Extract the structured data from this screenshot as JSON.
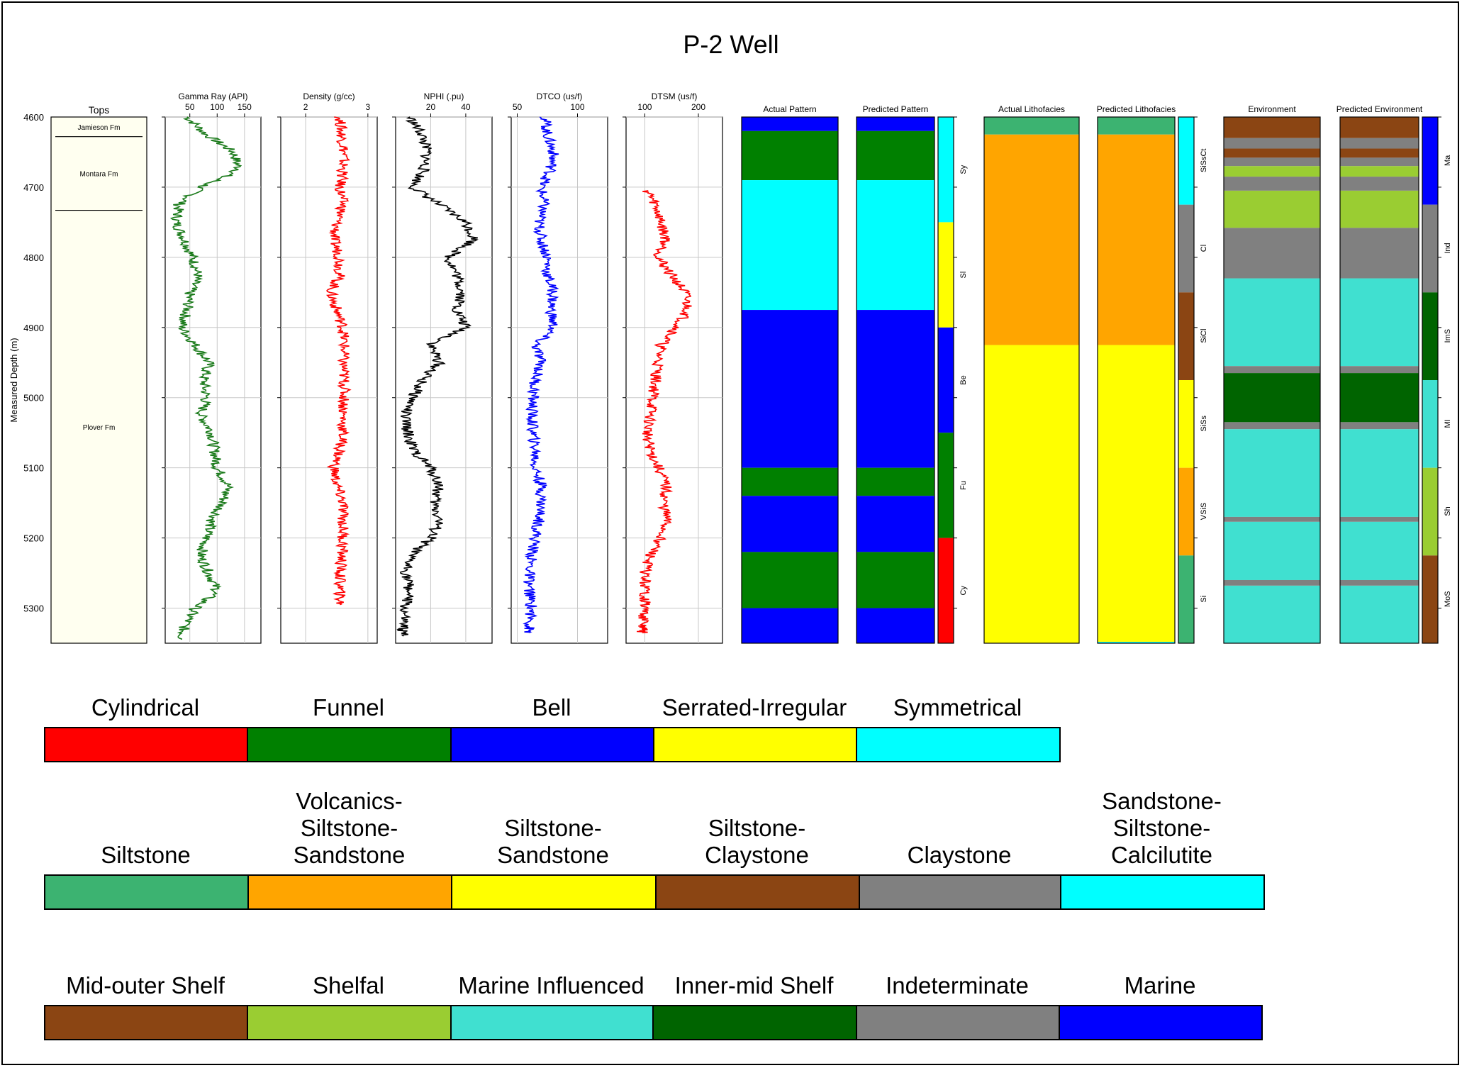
{
  "chart_data": {
    "type": "well-log",
    "title": "P-2 Well",
    "ylabel": "Measured Depth (m)",
    "depth_range": [
      4600,
      5350
    ],
    "depth_ticks": [
      4600,
      4700,
      4800,
      4900,
      5000,
      5100,
      5200,
      5300
    ],
    "tops": {
      "title": "Tops",
      "formations": [
        {
          "name": "Jamieson Fm",
          "top": 4600,
          "base": 4628
        },
        {
          "name": "Montara Fm",
          "top": 4628,
          "base": 4733
        },
        {
          "name": "Plover Fm",
          "top": 4733,
          "base": 5350
        }
      ]
    },
    "curves": [
      {
        "name": "Gamma Ray (API)",
        "color": "#1a7a1a",
        "xlim": [
          5,
          180
        ],
        "ticks": [
          50,
          100,
          150
        ],
        "depths": [
          4600,
          4625,
          4650,
          4675,
          4700,
          4725,
          4750,
          4775,
          4800,
          4825,
          4850,
          4875,
          4900,
          4925,
          4950,
          4975,
          5000,
          5025,
          5050,
          5075,
          5100,
          5125,
          5150,
          5175,
          5200,
          5225,
          5250,
          5275,
          5300,
          5325,
          5345
        ],
        "values": [
          45,
          80,
          130,
          140,
          70,
          30,
          25,
          40,
          55,
          65,
          50,
          45,
          35,
          60,
          85,
          75,
          80,
          70,
          90,
          95,
          100,
          120,
          110,
          90,
          80,
          70,
          85,
          100,
          60,
          40,
          35
        ]
      },
      {
        "name": "Density (g/cc)",
        "color": "#ff0000",
        "xlim": [
          1.6,
          3.15
        ],
        "ticks": [
          2,
          3
        ],
        "depths": [
          4600,
          4625,
          4650,
          4675,
          4700,
          4725,
          4750,
          4775,
          4800,
          4825,
          4850,
          4875,
          4900,
          4925,
          4950,
          4975,
          5000,
          5025,
          5050,
          5075,
          5100,
          5125,
          5150,
          5175,
          5200,
          5225,
          5250,
          5275,
          5295
        ],
        "values": [
          2.55,
          2.58,
          2.62,
          2.6,
          2.55,
          2.6,
          2.5,
          2.45,
          2.55,
          2.55,
          2.4,
          2.5,
          2.6,
          2.62,
          2.6,
          2.62,
          2.62,
          2.6,
          2.6,
          2.55,
          2.45,
          2.5,
          2.6,
          2.6,
          2.6,
          2.58,
          2.55,
          2.55,
          2.55
        ]
      },
      {
        "name": "NPHI (.pu)",
        "color": "#000000",
        "xlim": [
          0,
          55
        ],
        "ticks": [
          20,
          40
        ],
        "depths": [
          4600,
          4625,
          4650,
          4675,
          4700,
          4725,
          4750,
          4775,
          4800,
          4825,
          4850,
          4875,
          4900,
          4925,
          4950,
          4975,
          5000,
          5025,
          5050,
          5075,
          5100,
          5125,
          5150,
          5175,
          5200,
          5225,
          5250,
          5275,
          5300,
          5325,
          5340
        ],
        "values": [
          8,
          15,
          18,
          16,
          10,
          25,
          40,
          45,
          30,
          35,
          38,
          35,
          40,
          20,
          25,
          15,
          10,
          5,
          7,
          10,
          20,
          25,
          22,
          25,
          20,
          8,
          6,
          8,
          5,
          4,
          4
        ]
      },
      {
        "name": "DTCO (us/f)",
        "color": "#0000ff",
        "xlim": [
          45,
          125
        ],
        "ticks": [
          50,
          100
        ],
        "depths": [
          4600,
          4625,
          4650,
          4675,
          4700,
          4725,
          4750,
          4775,
          4800,
          4825,
          4850,
          4875,
          4900,
          4925,
          4950,
          4975,
          5000,
          5025,
          5050,
          5075,
          5100,
          5125,
          5150,
          5175,
          5200,
          5225,
          5250,
          5275,
          5300,
          5325,
          5335
        ],
        "values": [
          73,
          75,
          80,
          78,
          70,
          72,
          68,
          70,
          75,
          75,
          80,
          78,
          80,
          65,
          70,
          65,
          63,
          62,
          63,
          65,
          65,
          70,
          70,
          68,
          65,
          62,
          60,
          60,
          62,
          60,
          60
        ]
      },
      {
        "name": "DTSM (us/f)",
        "color": "#ff0000",
        "xlim": [
          65,
          245
        ],
        "ticks": [
          100,
          200
        ],
        "depths": [
          4705,
          4725,
          4750,
          4775,
          4800,
          4825,
          4850,
          4875,
          4900,
          4925,
          4950,
          4975,
          5000,
          5025,
          5050,
          5075,
          5100,
          5125,
          5150,
          5175,
          5200,
          5225,
          5250,
          5275,
          5300,
          5325,
          5335
        ],
        "values": [
          105,
          120,
          130,
          140,
          125,
          150,
          175,
          180,
          160,
          130,
          125,
          120,
          115,
          110,
          105,
          110,
          125,
          140,
          135,
          140,
          130,
          110,
          100,
          100,
          100,
          95,
          95
        ]
      }
    ],
    "tracks": [
      {
        "name": "Actual Pattern",
        "intervals": [
          [
            4600,
            4620,
            "Bell"
          ],
          [
            4620,
            4690,
            "Funnel"
          ],
          [
            4690,
            4875,
            "Symmetrical"
          ],
          [
            4875,
            5100,
            "Bell"
          ],
          [
            5100,
            5140,
            "Funnel"
          ],
          [
            5140,
            5220,
            "Bell"
          ],
          [
            5220,
            5300,
            "Funnel"
          ],
          [
            5300,
            5350,
            "Bell"
          ]
        ]
      },
      {
        "name": "Predicted Pattern",
        "intervals": [
          [
            4600,
            4620,
            "Bell"
          ],
          [
            4620,
            4690,
            "Funnel"
          ],
          [
            4690,
            4875,
            "Symmetrical"
          ],
          [
            4875,
            5100,
            "Bell"
          ],
          [
            5100,
            5140,
            "Funnel"
          ],
          [
            5140,
            5220,
            "Bell"
          ],
          [
            5220,
            5300,
            "Funnel"
          ],
          [
            5300,
            5350,
            "Bell"
          ]
        ]
      },
      {
        "name": "",
        "intervals": [
          [
            4600,
            4750,
            "Symmetrical"
          ],
          [
            4750,
            4900,
            "Serrated-Irregular"
          ],
          [
            4900,
            5050,
            "Bell"
          ],
          [
            5050,
            5200,
            "Funnel"
          ],
          [
            5200,
            5350,
            "Cylindrical"
          ]
        ],
        "labels": [
          [
            4675,
            "Sy"
          ],
          [
            4825,
            "Sl"
          ],
          [
            4975,
            "Be"
          ],
          [
            5125,
            "Fu"
          ],
          [
            5275,
            "Cy"
          ]
        ]
      },
      {
        "name": "Actual Lithofacies",
        "intervals": [
          [
            4600,
            4625,
            "Siltstone"
          ],
          [
            4625,
            4925,
            "Volcanics-Siltstone-Sandstone"
          ],
          [
            4925,
            5350,
            "Siltstone-Sandstone"
          ]
        ]
      },
      {
        "name": "Predicted Lithofacies",
        "intervals": [
          [
            4600,
            4625,
            "Siltstone"
          ],
          [
            4625,
            4925,
            "Volcanics-Siltstone-Sandstone"
          ],
          [
            4925,
            5348,
            "Siltstone-Sandstone"
          ],
          [
            5348,
            5350,
            "Sandstone-Siltstone-Calcilutite"
          ]
        ]
      },
      {
        "name": "",
        "intervals": [
          [
            4600,
            4725,
            "Sandstone-Siltstone-Calcilutite"
          ],
          [
            4725,
            4850,
            "Claystone"
          ],
          [
            4850,
            4975,
            "Siltstone-Claystone"
          ],
          [
            4975,
            5100,
            "Siltstone-Sandstone"
          ],
          [
            5100,
            5225,
            "Volcanics-Siltstone-Sandstone"
          ],
          [
            5225,
            5350,
            "Siltstone"
          ]
        ],
        "labels": [
          [
            4662,
            "SiSsCt"
          ],
          [
            4787,
            "Cl"
          ],
          [
            4912,
            "SiCl"
          ],
          [
            5037,
            "SiSs"
          ],
          [
            5162,
            "VSiS"
          ],
          [
            5287,
            "Si"
          ]
        ]
      },
      {
        "name": "Environment",
        "intervals": [
          [
            4600,
            4630,
            "Mid-outer Shelf"
          ],
          [
            4630,
            4645,
            "Indeterminate"
          ],
          [
            4645,
            4658,
            "Mid-outer Shelf"
          ],
          [
            4658,
            4670,
            "Indeterminate"
          ],
          [
            4670,
            4685,
            "Shelfal"
          ],
          [
            4685,
            4705,
            "Indeterminate"
          ],
          [
            4705,
            4758,
            "Shelfal"
          ],
          [
            4758,
            4830,
            "Indeterminate"
          ],
          [
            4830,
            4955,
            "Marine Influenced"
          ],
          [
            4955,
            4965,
            "Indeterminate"
          ],
          [
            4965,
            5035,
            "Inner-mid Shelf"
          ],
          [
            5035,
            5045,
            "Indeterminate"
          ],
          [
            5045,
            5170,
            "Marine Influenced"
          ],
          [
            5170,
            5177,
            "Indeterminate"
          ],
          [
            5177,
            5260,
            "Marine Influenced"
          ],
          [
            5260,
            5268,
            "Indeterminate"
          ],
          [
            5268,
            5350,
            "Marine Influenced"
          ]
        ]
      },
      {
        "name": "Predicted Environment",
        "intervals": [
          [
            4600,
            4630,
            "Mid-outer Shelf"
          ],
          [
            4630,
            4645,
            "Indeterminate"
          ],
          [
            4645,
            4658,
            "Mid-outer Shelf"
          ],
          [
            4658,
            4670,
            "Indeterminate"
          ],
          [
            4670,
            4685,
            "Shelfal"
          ],
          [
            4685,
            4705,
            "Indeterminate"
          ],
          [
            4705,
            4758,
            "Shelfal"
          ],
          [
            4758,
            4830,
            "Indeterminate"
          ],
          [
            4830,
            4955,
            "Marine Influenced"
          ],
          [
            4955,
            4965,
            "Indeterminate"
          ],
          [
            4965,
            5035,
            "Inner-mid Shelf"
          ],
          [
            5035,
            5045,
            "Indeterminate"
          ],
          [
            5045,
            5170,
            "Marine Influenced"
          ],
          [
            5170,
            5177,
            "Indeterminate"
          ],
          [
            5177,
            5260,
            "Marine Influenced"
          ],
          [
            5260,
            5268,
            "Indeterminate"
          ],
          [
            5268,
            5350,
            "Marine Influenced"
          ]
        ]
      },
      {
        "name": "",
        "intervals": [
          [
            4600,
            4725,
            "Marine"
          ],
          [
            4725,
            4850,
            "Indeterminate"
          ],
          [
            4850,
            4975,
            "Inner-mid Shelf"
          ],
          [
            4975,
            5100,
            "Marine Influenced"
          ],
          [
            5100,
            5225,
            "Shelfal"
          ],
          [
            5225,
            5350,
            "Mid-outer Shelf"
          ]
        ],
        "labels": [
          [
            4662,
            "Ma"
          ],
          [
            4787,
            "Ind"
          ],
          [
            4912,
            "ImS"
          ],
          [
            5037,
            "MI"
          ],
          [
            5162,
            "Sh"
          ],
          [
            5287,
            "MoS"
          ]
        ]
      }
    ],
    "legend_groups": [
      [
        {
          "label": "Cylindrical",
          "color": "#ff0000"
        },
        {
          "label": "Funnel",
          "color": "#008000"
        },
        {
          "label": "Bell",
          "color": "#0000ff"
        },
        {
          "label": "Serrated-Irregular",
          "color": "#ffff00"
        },
        {
          "label": "Symmetrical",
          "color": "#00ffff"
        }
      ],
      [
        {
          "label": "Siltstone",
          "color": "#3cb371"
        },
        {
          "label": "Volcanics-\nSiltstone-\nSandstone",
          "color": "#ffa500"
        },
        {
          "label": "Siltstone-\nSandstone",
          "color": "#ffff00"
        },
        {
          "label": "Siltstone-\nClaystone",
          "color": "#8b4513"
        },
        {
          "label": "Claystone",
          "color": "#808080"
        },
        {
          "label": "Sandstone-\nSiltstone-\nCalcilutite",
          "color": "#00ffff"
        }
      ],
      [
        {
          "label": "Mid-outer Shelf",
          "color": "#8b4513"
        },
        {
          "label": "Shelfal",
          "color": "#9acd32"
        },
        {
          "label": "Marine Influenced",
          "color": "#40e0d0"
        },
        {
          "label": "Inner-mid Shelf",
          "color": "#006400"
        },
        {
          "label": "Indeterminate",
          "color": "#808080"
        },
        {
          "label": "Marine",
          "color": "#0000ff"
        }
      ]
    ]
  }
}
